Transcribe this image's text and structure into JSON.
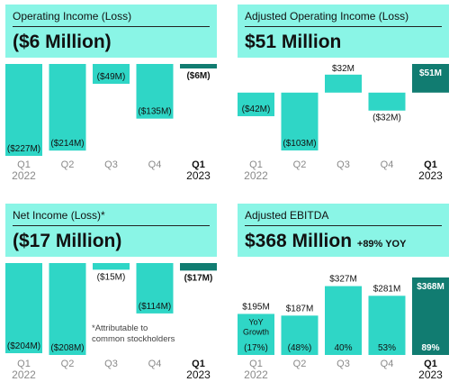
{
  "colors": {
    "bar": "#2fd6c6",
    "highlight_bar": "#117c71",
    "header_bg": "#8af5e6",
    "axis": "#8a8a8a"
  },
  "chart_data": [
    {
      "type": "bar",
      "title": "Operating Income (Loss)",
      "headline": "($6 Million)",
      "headline_extra": "",
      "categories": [
        "Q1",
        "Q2",
        "Q3",
        "Q4",
        "Q1"
      ],
      "years": [
        "2022",
        "",
        "",
        "",
        "2023"
      ],
      "values": [
        -227,
        -214,
        -49,
        -135,
        -6
      ],
      "labels": [
        "($227M)",
        "($214M)",
        "($49M)",
        "($135M)",
        "($6M)"
      ],
      "highlight_index": 4,
      "unit": "$M",
      "note": ""
    },
    {
      "type": "bar",
      "title": "Adjusted Operating Income (Loss)",
      "headline": "$51 Million",
      "headline_extra": "",
      "categories": [
        "Q1",
        "Q2",
        "Q3",
        "Q4",
        "Q1"
      ],
      "years": [
        "2022",
        "",
        "",
        "",
        "2023"
      ],
      "values": [
        -42,
        -103,
        32,
        -32,
        51
      ],
      "labels": [
        "($42M)",
        "($103M)",
        "$32M",
        "($32M)",
        "$51M"
      ],
      "highlight_index": 4,
      "unit": "$M",
      "note": ""
    },
    {
      "type": "bar",
      "title": "Net Income (Loss)*",
      "headline": "($17 Million)",
      "headline_extra": "",
      "categories": [
        "Q1",
        "Q2",
        "Q3",
        "Q4",
        "Q1"
      ],
      "years": [
        "2022",
        "",
        "",
        "",
        "2023"
      ],
      "values": [
        -204,
        -208,
        -15,
        -114,
        -17
      ],
      "labels": [
        "($204M)",
        "($208M)",
        "($15M)",
        "($114M)",
        "($17M)"
      ],
      "highlight_index": 4,
      "unit": "$M",
      "note": "*Attributable to\ncommon stockholders"
    },
    {
      "type": "bar",
      "title": "Adjusted EBITDA",
      "headline": "$368 Million",
      "headline_extra": "+89% YOY",
      "categories": [
        "Q1",
        "Q2",
        "Q3",
        "Q4",
        "Q1"
      ],
      "years": [
        "2022",
        "",
        "",
        "",
        "2023"
      ],
      "values": [
        195,
        187,
        327,
        281,
        368
      ],
      "labels": [
        "$195M",
        "$187M",
        "$327M",
        "$281M",
        "$368M"
      ],
      "highlight_index": 4,
      "unit": "$M",
      "yoy_title": "YoY\nGrowth",
      "yoy": [
        "(17%)",
        "(48%)",
        "40%",
        "53%",
        "89%"
      ],
      "note": ""
    }
  ]
}
